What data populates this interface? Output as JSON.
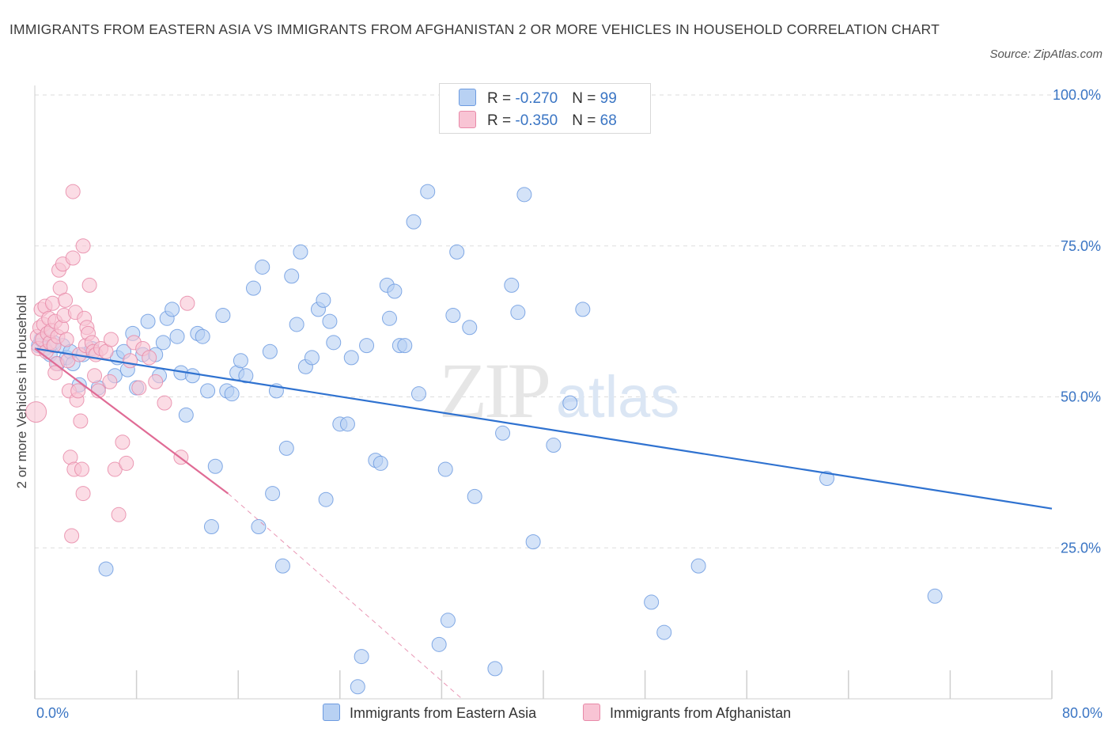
{
  "title": "IMMIGRANTS FROM EASTERN ASIA VS IMMIGRANTS FROM AFGHANISTAN 2 OR MORE VEHICLES IN HOUSEHOLD CORRELATION CHART",
  "source": "Source: ZipAtlas.com",
  "watermark": {
    "zip": "ZIP",
    "atlas": "atlas"
  },
  "legend": {
    "rows": [
      {
        "r_label": "R = ",
        "r_value": "-0.270",
        "n_label": "N = ",
        "n_value": "99"
      },
      {
        "r_label": "R = ",
        "r_value": "-0.350",
        "n_label": "N = ",
        "n_value": "68"
      }
    ]
  },
  "colors": {
    "blue_fill": "#b8d1f3",
    "blue_stroke": "#6d9be0",
    "blue_line": "#2f72d0",
    "pink_fill": "#f8c4d4",
    "pink_stroke": "#e889a8",
    "pink_line": "#e06b95",
    "grid": "#dddddd",
    "tick_text": "#3a75c4"
  },
  "chart_data": {
    "type": "scatter",
    "xlabel": "",
    "ylabel": "2 or more Vehicles in Household",
    "xlim": [
      0,
      80
    ],
    "ylim": [
      0,
      100
    ],
    "x_tick_labels": [
      "0.0%",
      "80.0%"
    ],
    "y_ticks": [
      25,
      50,
      75,
      100
    ],
    "y_tick_labels": [
      "25.0%",
      "50.0%",
      "75.0%",
      "100.0%"
    ],
    "grid": true,
    "legend_position": "top-center",
    "series": [
      {
        "name": "Immigrants from Eastern Asia",
        "trend": {
          "x": [
            0,
            80
          ],
          "y": [
            58.0,
            31.5
          ]
        },
        "points": [
          [
            0.3,
            58.5
          ],
          [
            0.5,
            59.5
          ],
          [
            0.8,
            58.0
          ],
          [
            1.0,
            60.5
          ],
          [
            1.2,
            57.0
          ],
          [
            1.5,
            59.0
          ],
          [
            1.8,
            55.5
          ],
          [
            2.2,
            58.5
          ],
          [
            2.5,
            56.5
          ],
          [
            2.8,
            57.5
          ],
          [
            3.0,
            55.5
          ],
          [
            3.5,
            52.0
          ],
          [
            3.8,
            57.0
          ],
          [
            4.5,
            58.0
          ],
          [
            5.0,
            51.5
          ],
          [
            5.6,
            21.5
          ],
          [
            6.3,
            53.5
          ],
          [
            6.5,
            56.5
          ],
          [
            7.0,
            57.5
          ],
          [
            7.3,
            54.5
          ],
          [
            7.7,
            60.5
          ],
          [
            8.0,
            51.5
          ],
          [
            8.5,
            57.0
          ],
          [
            8.9,
            62.5
          ],
          [
            9.5,
            57.0
          ],
          [
            9.8,
            53.5
          ],
          [
            10.1,
            59.0
          ],
          [
            10.4,
            63.0
          ],
          [
            10.8,
            64.5
          ],
          [
            11.2,
            60.0
          ],
          [
            11.5,
            54.0
          ],
          [
            11.9,
            47.0
          ],
          [
            12.4,
            53.5
          ],
          [
            12.8,
            60.5
          ],
          [
            13.2,
            60.0
          ],
          [
            13.6,
            51.0
          ],
          [
            13.9,
            28.5
          ],
          [
            14.2,
            38.5
          ],
          [
            14.8,
            63.5
          ],
          [
            15.1,
            51.0
          ],
          [
            15.5,
            50.5
          ],
          [
            15.9,
            54.0
          ],
          [
            16.2,
            56.0
          ],
          [
            16.6,
            53.5
          ],
          [
            17.2,
            68.0
          ],
          [
            17.6,
            28.5
          ],
          [
            17.9,
            71.5
          ],
          [
            18.5,
            57.5
          ],
          [
            18.7,
            34.0
          ],
          [
            19.0,
            51.0
          ],
          [
            19.5,
            22.0
          ],
          [
            19.8,
            41.5
          ],
          [
            20.2,
            70.0
          ],
          [
            20.6,
            62.0
          ],
          [
            20.9,
            74.0
          ],
          [
            21.3,
            55.0
          ],
          [
            21.8,
            56.5
          ],
          [
            22.3,
            64.5
          ],
          [
            22.7,
            66.0
          ],
          [
            22.9,
            33.0
          ],
          [
            23.2,
            62.5
          ],
          [
            23.5,
            59.0
          ],
          [
            24.0,
            45.5
          ],
          [
            24.6,
            45.5
          ],
          [
            24.9,
            56.5
          ],
          [
            25.7,
            7.0
          ],
          [
            26.1,
            58.5
          ],
          [
            26.8,
            39.5
          ],
          [
            27.2,
            39.0
          ],
          [
            27.7,
            68.5
          ],
          [
            27.9,
            63.0
          ],
          [
            28.3,
            67.5
          ],
          [
            28.7,
            58.5
          ],
          [
            29.1,
            58.5
          ],
          [
            29.8,
            79.0
          ],
          [
            30.2,
            50.5
          ],
          [
            30.9,
            84.0
          ],
          [
            31.8,
            9.0
          ],
          [
            32.3,
            38.0
          ],
          [
            32.5,
            13.0
          ],
          [
            32.9,
            63.5
          ],
          [
            33.2,
            74.0
          ],
          [
            34.2,
            61.5
          ],
          [
            34.6,
            33.5
          ],
          [
            36.2,
            5.0
          ],
          [
            36.8,
            44.0
          ],
          [
            37.5,
            68.5
          ],
          [
            38.0,
            64.0
          ],
          [
            38.5,
            83.5
          ],
          [
            39.2,
            26.0
          ],
          [
            40.8,
            42.0
          ],
          [
            42.1,
            49.0
          ],
          [
            43.1,
            64.5
          ],
          [
            48.5,
            16.0
          ],
          [
            49.5,
            11.0
          ],
          [
            52.2,
            22.0
          ],
          [
            62.3,
            36.5
          ],
          [
            70.8,
            17.0
          ],
          [
            25.4,
            2.0
          ]
        ]
      },
      {
        "name": "Immigrants from Afghanistan",
        "trend": {
          "x": [
            0,
            15.2
          ],
          "y": [
            58.0,
            34.0
          ]
        },
        "trend_extension": {
          "x": [
            15.2,
            33.6
          ],
          "y": [
            34.0,
            0
          ]
        },
        "points": [
          [
            0.1,
            47.5
          ],
          [
            0.2,
            60.0
          ],
          [
            0.3,
            58.0
          ],
          [
            0.4,
            61.5
          ],
          [
            0.5,
            64.5
          ],
          [
            0.6,
            59.5
          ],
          [
            0.7,
            62.0
          ],
          [
            0.8,
            65.0
          ],
          [
            0.9,
            57.5
          ],
          [
            1.0,
            60.5
          ],
          [
            1.1,
            63.0
          ],
          [
            1.2,
            59.0
          ],
          [
            1.3,
            61.0
          ],
          [
            1.4,
            65.5
          ],
          [
            1.5,
            58.5
          ],
          [
            1.6,
            62.5
          ],
          [
            1.7,
            55.5
          ],
          [
            1.8,
            60.0
          ],
          [
            1.9,
            71.0
          ],
          [
            2.0,
            68.0
          ],
          [
            2.1,
            61.5
          ],
          [
            2.2,
            72.0
          ],
          [
            2.3,
            63.5
          ],
          [
            2.4,
            66.0
          ],
          [
            2.5,
            59.5
          ],
          [
            2.6,
            56.0
          ],
          [
            2.7,
            51.0
          ],
          [
            2.8,
            40.0
          ],
          [
            2.9,
            27.0
          ],
          [
            3.0,
            73.0
          ],
          [
            3.1,
            38.0
          ],
          [
            3.2,
            64.0
          ],
          [
            3.3,
            49.5
          ],
          [
            3.4,
            51.0
          ],
          [
            3.5,
            57.0
          ],
          [
            3.6,
            46.0
          ],
          [
            3.7,
            38.0
          ],
          [
            3.8,
            34.0
          ],
          [
            3.9,
            63.0
          ],
          [
            4.0,
            58.5
          ],
          [
            4.1,
            61.5
          ],
          [
            4.2,
            60.5
          ],
          [
            4.3,
            68.5
          ],
          [
            4.5,
            59.0
          ],
          [
            4.6,
            57.5
          ],
          [
            4.7,
            53.5
          ],
          [
            4.8,
            57.0
          ],
          [
            5.0,
            51.0
          ],
          [
            5.2,
            58.0
          ],
          [
            5.6,
            57.5
          ],
          [
            5.9,
            52.5
          ],
          [
            6.0,
            59.5
          ],
          [
            6.3,
            38.0
          ],
          [
            6.6,
            30.5
          ],
          [
            6.9,
            42.5
          ],
          [
            7.2,
            39.0
          ],
          [
            7.5,
            56.0
          ],
          [
            7.8,
            59.0
          ],
          [
            8.2,
            51.5
          ],
          [
            8.5,
            58.0
          ],
          [
            9.0,
            56.5
          ],
          [
            9.5,
            52.5
          ],
          [
            10.2,
            49.0
          ],
          [
            11.5,
            40.0
          ],
          [
            12.0,
            65.5
          ],
          [
            3.0,
            84.0
          ],
          [
            3.8,
            75.0
          ],
          [
            1.6,
            54.0
          ]
        ]
      }
    ]
  }
}
